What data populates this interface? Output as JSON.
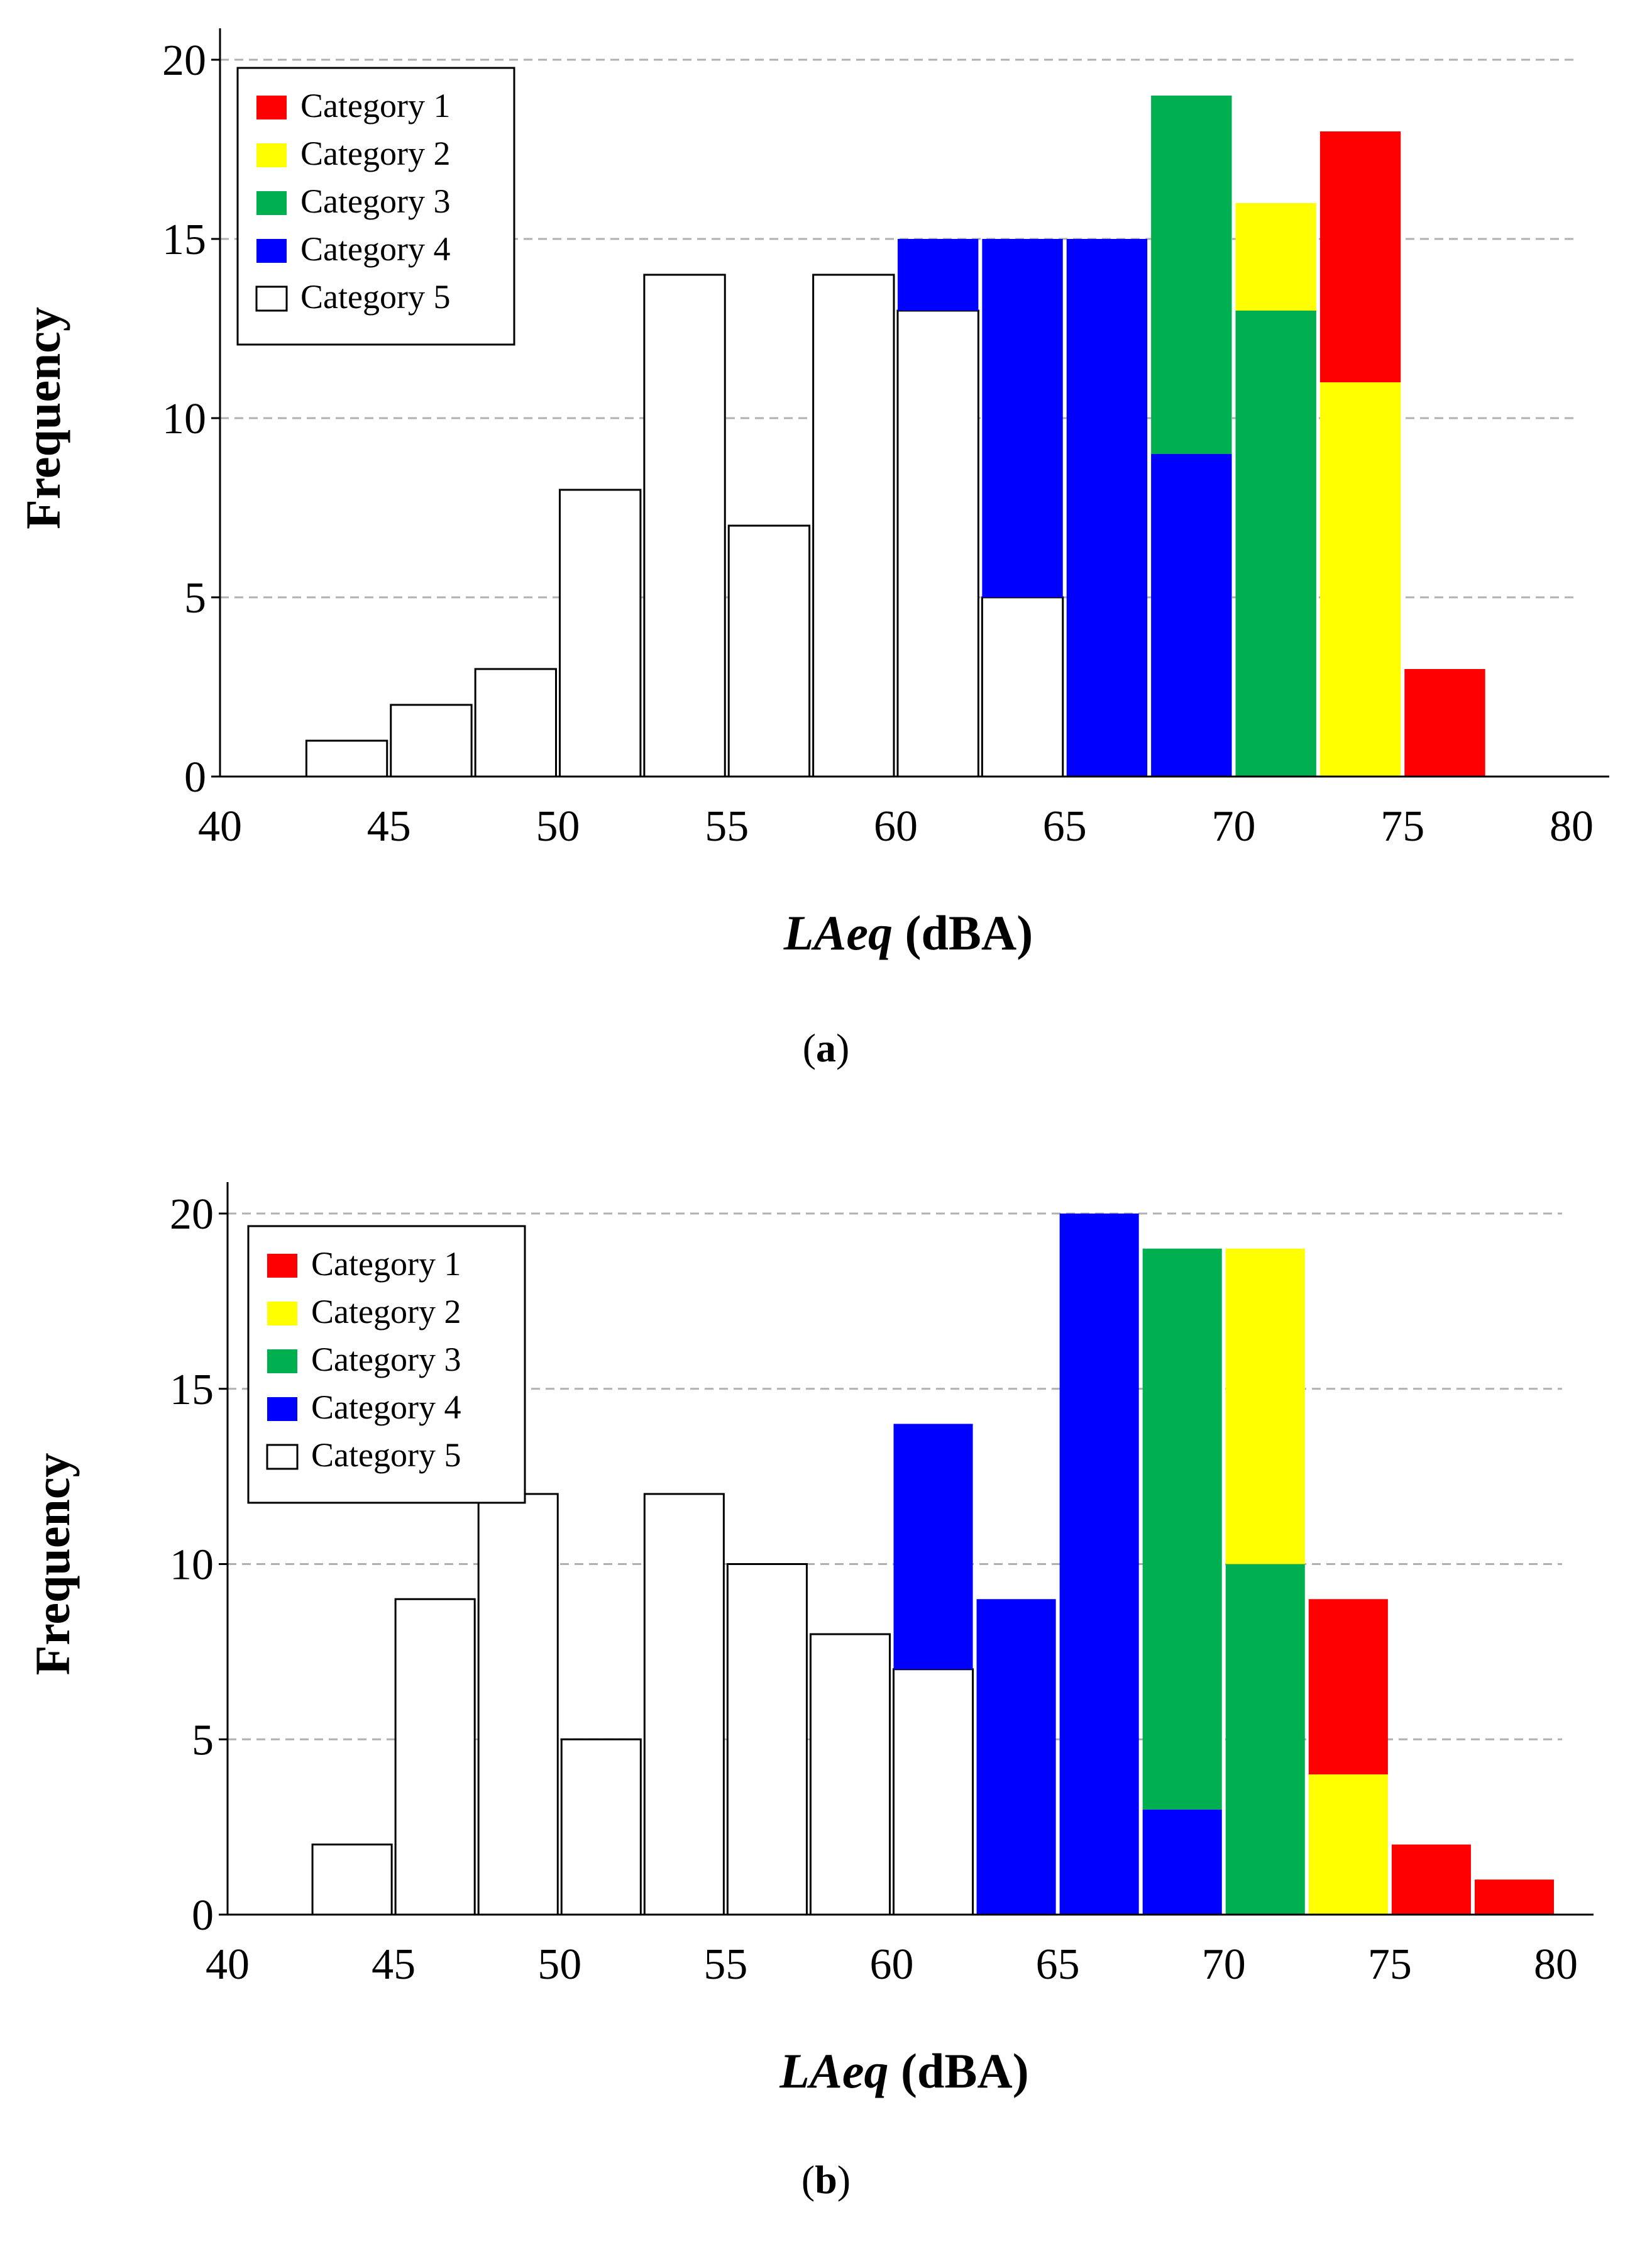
{
  "chart_data": [
    {
      "type": "bar",
      "stacked": true,
      "panel_label": "a",
      "xlabel_italic": "LAeq",
      "xlabel_rest": "(dBA)",
      "ylabel": "Frequency",
      "xlim": [
        40,
        80
      ],
      "ylim": [
        0,
        20
      ],
      "bin_width": 2.5,
      "xticks": [
        40,
        45,
        50,
        55,
        60,
        65,
        70,
        75,
        80
      ],
      "yticks": [
        0,
        5,
        10,
        15,
        20
      ],
      "grid": "y-dashed",
      "legend_position": "top-left",
      "bin_starts": [
        42.5,
        45,
        47.5,
        50,
        52.5,
        55,
        57.5,
        60,
        62.5,
        65,
        67.5,
        70,
        72.5,
        75
      ],
      "series": [
        {
          "name": "Category 5",
          "color": "#ffffff",
          "values": [
            1,
            2,
            3,
            8,
            14,
            7,
            14,
            13,
            5,
            0,
            0,
            0,
            0,
            0
          ]
        },
        {
          "name": "Category 4",
          "color": "#0000ff",
          "values": [
            0,
            0,
            0,
            0,
            0,
            0,
            0,
            2,
            10,
            15,
            9,
            0,
            0,
            0
          ]
        },
        {
          "name": "Category 3",
          "color": "#00b050",
          "values": [
            0,
            0,
            0,
            0,
            0,
            0,
            0,
            0,
            0,
            0,
            10,
            13,
            0,
            0
          ]
        },
        {
          "name": "Category 2",
          "color": "#ffff00",
          "values": [
            0,
            0,
            0,
            0,
            0,
            0,
            0,
            0,
            0,
            0,
            0,
            3,
            11,
            0
          ]
        },
        {
          "name": "Category 1",
          "color": "#ff0000",
          "values": [
            0,
            0,
            0,
            0,
            0,
            0,
            0,
            0,
            0,
            0,
            0,
            0,
            7,
            3
          ]
        }
      ]
    },
    {
      "type": "bar",
      "stacked": true,
      "panel_label": "b",
      "xlabel_italic": "LAeq",
      "xlabel_rest": "(dBA)",
      "ylabel": "Frequency",
      "xlim": [
        40,
        80
      ],
      "ylim": [
        0,
        20
      ],
      "bin_width": 2.5,
      "xticks": [
        40,
        45,
        50,
        55,
        60,
        65,
        70,
        75,
        80
      ],
      "yticks": [
        0,
        5,
        10,
        15,
        20
      ],
      "grid": "y-dashed",
      "legend_position": "top-left",
      "bin_starts": [
        42.5,
        45,
        47.5,
        50,
        52.5,
        55,
        57.5,
        60,
        62.5,
        65,
        67.5,
        70,
        72.5,
        75,
        77.5
      ],
      "series": [
        {
          "name": "Category 5",
          "color": "#ffffff",
          "values": [
            2,
            9,
            12,
            5,
            12,
            10,
            8,
            7,
            0,
            0,
            0,
            0,
            0,
            0,
            0
          ]
        },
        {
          "name": "Category 4",
          "color": "#0000ff",
          "values": [
            0,
            0,
            0,
            0,
            0,
            0,
            0,
            7,
            9,
            20,
            3,
            0,
            0,
            0,
            0
          ]
        },
        {
          "name": "Category 3",
          "color": "#00b050",
          "values": [
            0,
            0,
            0,
            0,
            0,
            0,
            0,
            0,
            0,
            0,
            16,
            10,
            0,
            0,
            0
          ]
        },
        {
          "name": "Category 2",
          "color": "#ffff00",
          "values": [
            0,
            0,
            0,
            0,
            0,
            0,
            0,
            0,
            0,
            0,
            0,
            9,
            4,
            0,
            0
          ]
        },
        {
          "name": "Category 1",
          "color": "#ff0000",
          "values": [
            0,
            0,
            0,
            0,
            0,
            0,
            0,
            0,
            0,
            0,
            0,
            0,
            5,
            2,
            1
          ]
        }
      ]
    }
  ]
}
